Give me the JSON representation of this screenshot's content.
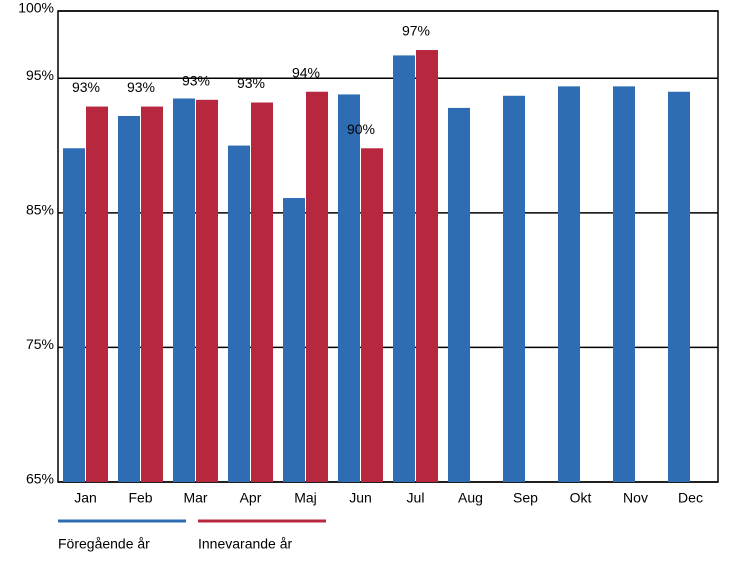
{
  "chart_data": {
    "type": "bar",
    "categories": [
      "Jan",
      "Feb",
      "Mar",
      "Apr",
      "Maj",
      "Jun",
      "Jul",
      "Aug",
      "Sep",
      "Okt",
      "Nov",
      "Dec"
    ],
    "series": [
      {
        "name": "Föregående år",
        "color": "#2e6db4",
        "values": [
          89.8,
          92.2,
          93.5,
          90.0,
          86.1,
          93.8,
          96.7,
          92.8,
          93.7,
          94.4,
          94.4,
          94.0
        ]
      },
      {
        "name": "Innevarande år",
        "color": "#b7283e",
        "values": [
          92.9,
          92.9,
          93.4,
          93.2,
          94.0,
          89.8,
          97.1,
          null,
          null,
          null,
          null,
          null
        ],
        "value_labels": [
          "93%",
          "93%",
          "93%",
          "93%",
          "94%",
          "90%",
          "97%",
          null,
          null,
          null,
          null,
          null
        ]
      }
    ],
    "ylim": [
      65,
      100
    ],
    "yticks": [
      {
        "value": 65,
        "label": "65%"
      },
      {
        "value": 75,
        "label": "75%"
      },
      {
        "value": 85,
        "label": "85%"
      },
      {
        "value": 95,
        "label": "95%"
      },
      {
        "value": 100,
        "label": "100%"
      }
    ],
    "grid": true
  }
}
